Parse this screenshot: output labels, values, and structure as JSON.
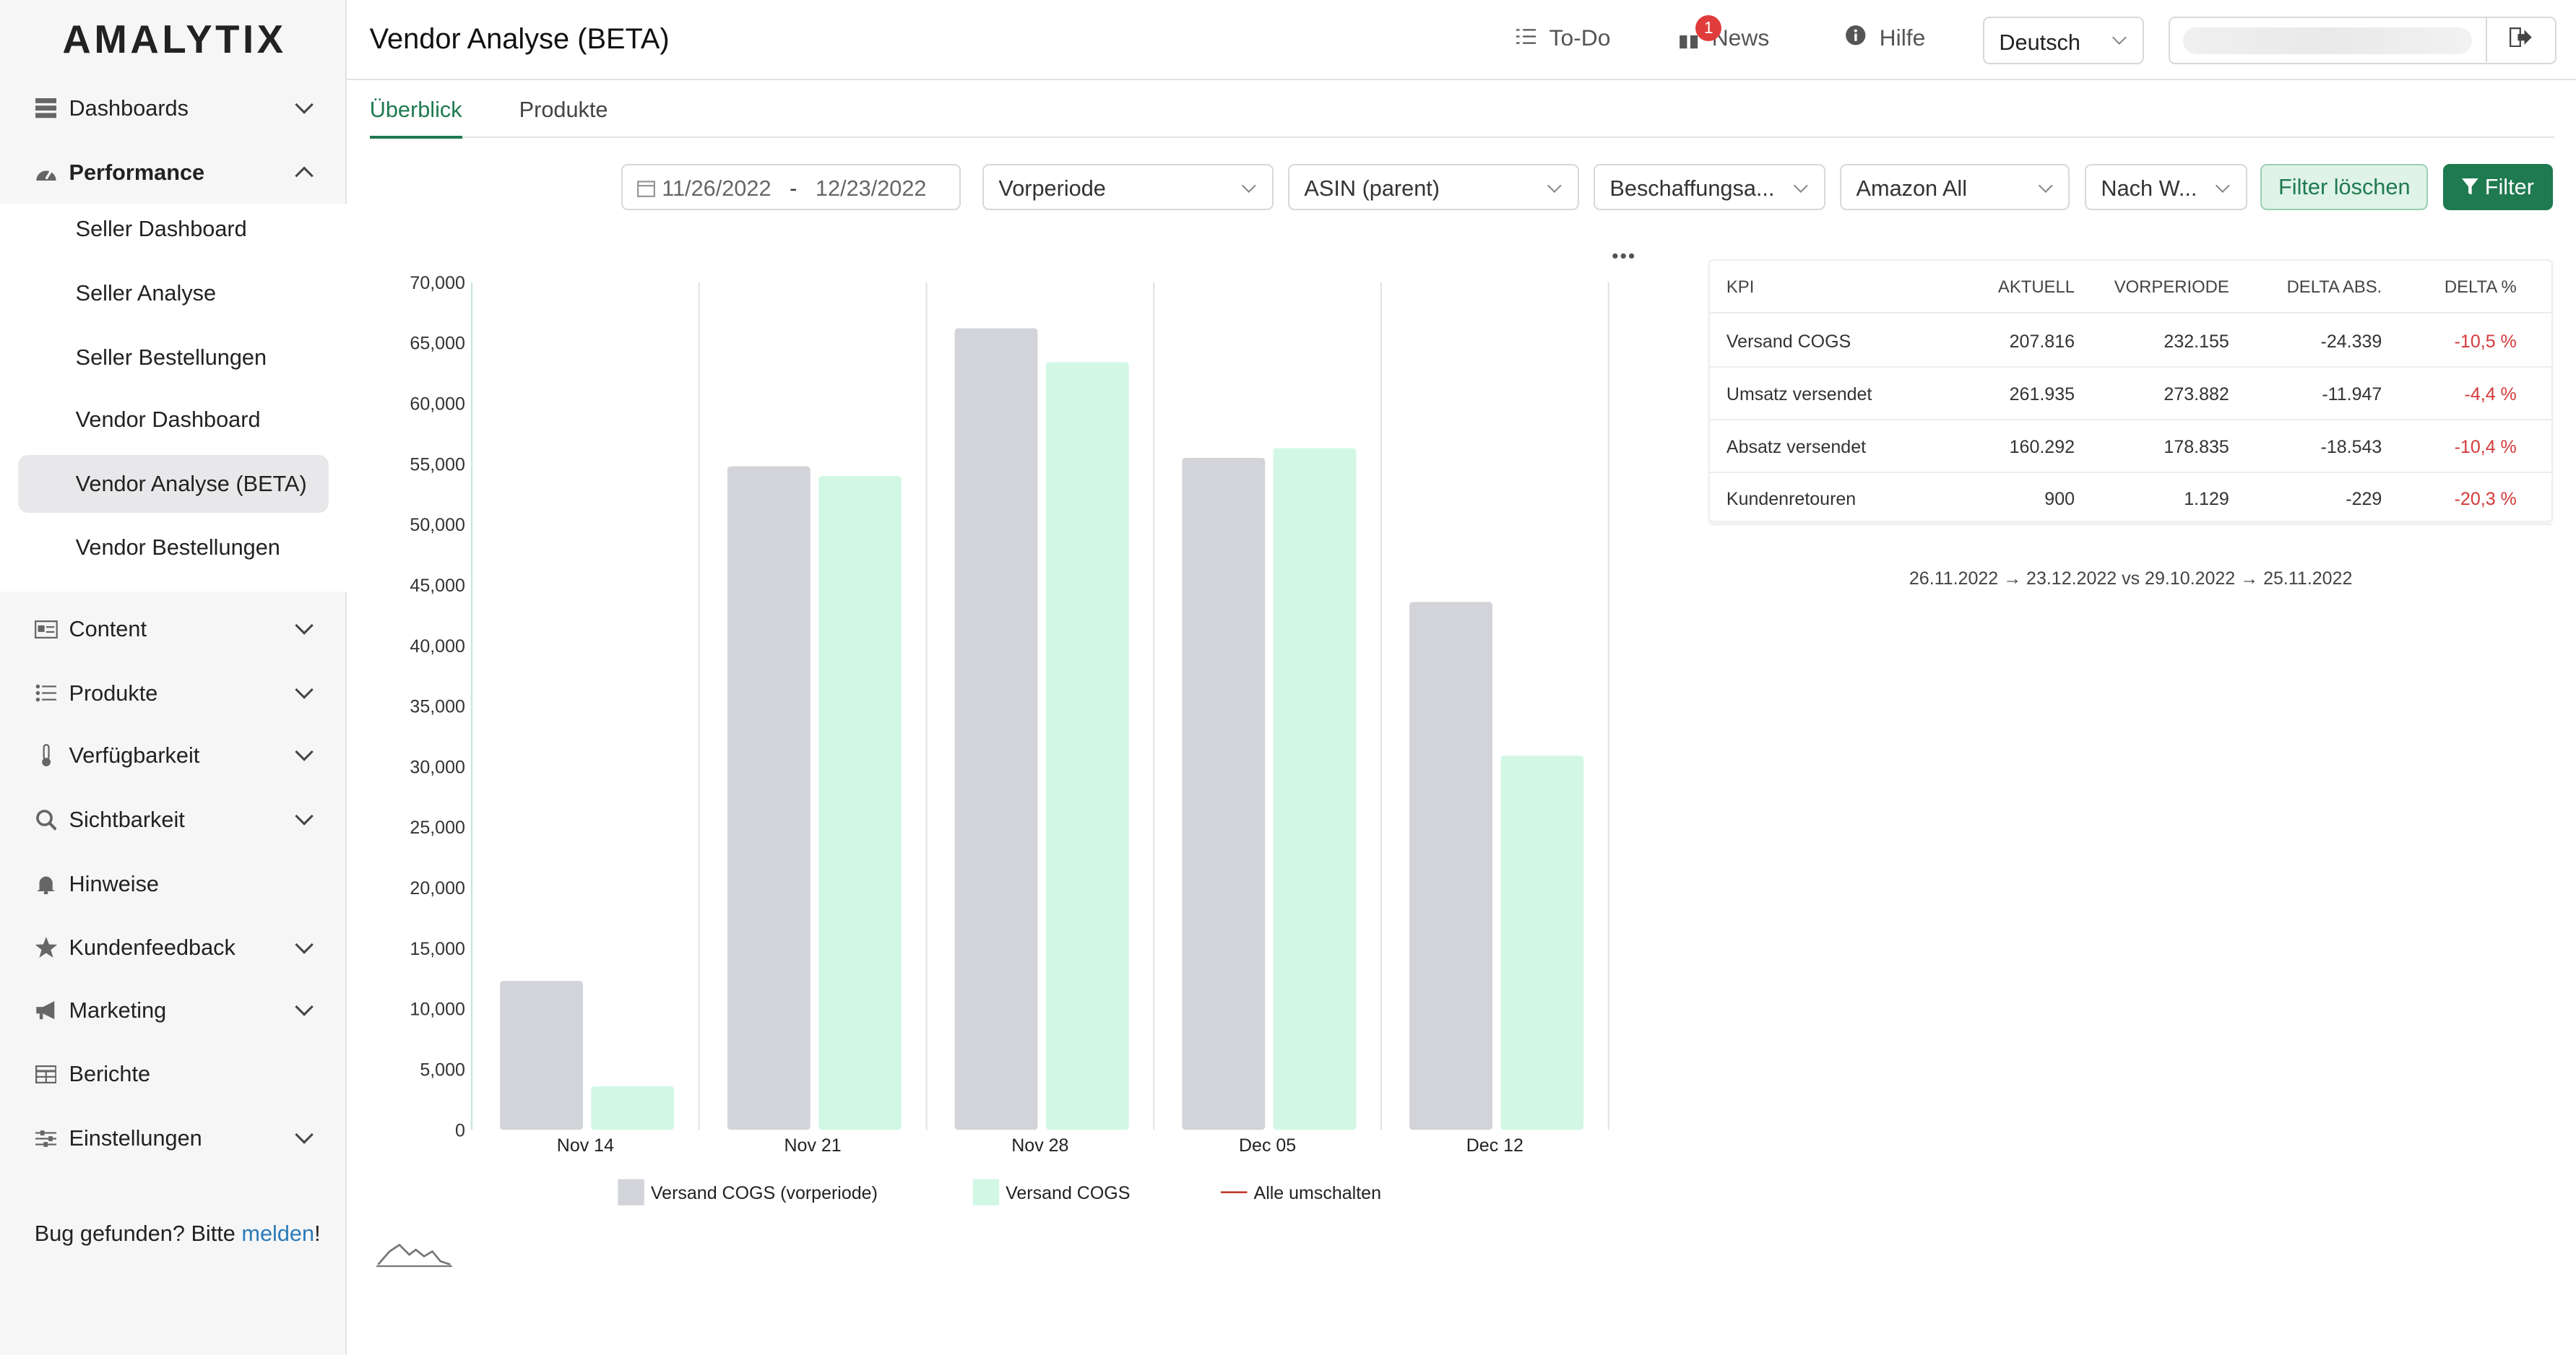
{
  "brand": {
    "logo": "AMALYTIX"
  },
  "sidebar": {
    "items": [
      {
        "label": "Dashboards",
        "icon": "dashboard-icon"
      },
      {
        "label": "Performance",
        "icon": "gauge-icon"
      },
      {
        "label": "Content",
        "icon": "content-icon"
      },
      {
        "label": "Produkte",
        "icon": "list-icon"
      },
      {
        "label": "Verfügbarkeit",
        "icon": "thermometer-icon"
      },
      {
        "label": "Sichtbarkeit",
        "icon": "search-icon"
      },
      {
        "label": "Hinweise",
        "icon": "bell-icon"
      },
      {
        "label": "Kundenfeedback",
        "icon": "star-icon"
      },
      {
        "label": "Marketing",
        "icon": "megaphone-icon"
      },
      {
        "label": "Berichte",
        "icon": "table-icon"
      },
      {
        "label": "Einstellungen",
        "icon": "sliders-icon"
      }
    ],
    "sub_items": [
      {
        "label": "Seller Dashboard"
      },
      {
        "label": "Seller Analyse"
      },
      {
        "label": "Seller Bestellungen"
      },
      {
        "label": "Vendor Dashboard"
      },
      {
        "label": "Vendor Analyse (BETA)"
      },
      {
        "label": "Vendor Bestellungen"
      }
    ],
    "bug_text": "Bug gefunden? Bitte ",
    "bug_link": "melden",
    "bug_suffix": "!"
  },
  "header": {
    "title": "Vendor Analyse (BETA)",
    "todo": "To-Do",
    "news": "News",
    "news_badge": "1",
    "help": "Hilfe",
    "language": "Deutsch"
  },
  "tabs": [
    {
      "label": "Überblick"
    },
    {
      "label": "Produkte"
    }
  ],
  "filters": {
    "date_from": "11/26/2022",
    "date_sep": "-",
    "date_to": "12/23/2022",
    "compare": "Vorperiode",
    "asin": "ASIN (parent)",
    "procurement": "Beschaffungsa...",
    "marketplace": "Amazon All",
    "group": "Nach W...",
    "clear": "Filter löschen",
    "filter": "Filter"
  },
  "chart_data": {
    "type": "bar",
    "categories": [
      "Nov 14",
      "Nov 21",
      "Nov 28",
      "Dec 05",
      "Dec 12"
    ],
    "series": [
      {
        "name": "Versand COGS (vorperiode)",
        "values": [
          12300,
          54800,
          66200,
          55500,
          43600
        ],
        "color": "#d3d4da"
      },
      {
        "name": "Versand COGS",
        "values": [
          3600,
          54000,
          63400,
          56300,
          30900
        ],
        "color": "#d2f8e5"
      }
    ],
    "yticks": [
      "0",
      "5,000",
      "10,000",
      "15,000",
      "20,000",
      "25,000",
      "30,000",
      "35,000",
      "40,000",
      "45,000",
      "50,000",
      "55,000",
      "60,000",
      "65,000",
      "70,000"
    ],
    "ylim": [
      0,
      70000
    ],
    "legend_toggle": "Alle umschalten",
    "legend_position": "bottom"
  },
  "kpi_table": {
    "headers": [
      "KPI",
      "AKTUELL",
      "VORPERIODE",
      "DELTA ABS.",
      "DELTA %"
    ],
    "rows": [
      [
        "Versand COGS",
        "207.816",
        "232.155",
        "-24.339",
        "-10,5 %"
      ],
      [
        "Umsatz versendet",
        "261.935",
        "273.882",
        "-11.947",
        "-4,4 %"
      ],
      [
        "Absatz versendet",
        "160.292",
        "178.835",
        "-18.543",
        "-10,4 %"
      ],
      [
        "Kundenretouren",
        "900",
        "1.129",
        "-229",
        "-20,3 %"
      ]
    ]
  },
  "comparison_note": "26.11.2022 → 23.12.2022 vs 29.10.2022 → 25.11.2022"
}
